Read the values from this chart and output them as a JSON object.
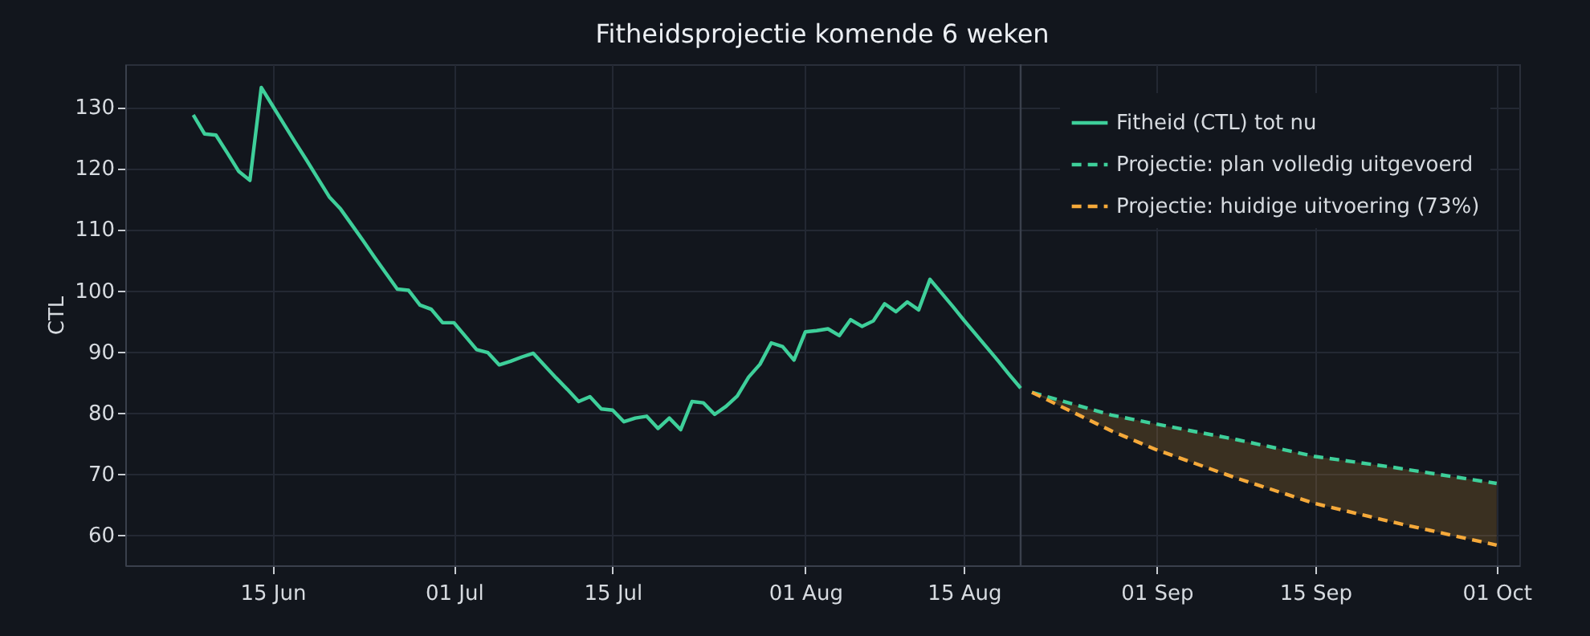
{
  "chart_data": {
    "type": "line",
    "title": "Fitheidsprojectie komende 6 weken",
    "ylabel": "CTL",
    "xlim": [
      "--06-02",
      "--10-03"
    ],
    "ylim": [
      55,
      137
    ],
    "xticks": [
      {
        "value": "--06-15",
        "label": "15 Jun"
      },
      {
        "value": "--07-01",
        "label": "01 Jul"
      },
      {
        "value": "--07-15",
        "label": "15 Jul"
      },
      {
        "value": "--08-01",
        "label": "01 Aug"
      },
      {
        "value": "--08-15",
        "label": "15 Aug"
      },
      {
        "value": "--09-01",
        "label": "01 Sep"
      },
      {
        "value": "--09-15",
        "label": "15 Sep"
      },
      {
        "value": "--10-01",
        "label": "01 Oct"
      }
    ],
    "yticks": [
      60,
      70,
      80,
      90,
      100,
      110,
      120,
      130
    ],
    "grid": true,
    "legend": "top right",
    "marker": "none",
    "ref_lines": [
      {
        "axis": "x",
        "value": "--08-20",
        "label": null,
        "color": "#3a404c"
      }
    ],
    "series": [
      {
        "name": "Fitheid (CTL) tot nu",
        "color": "#3ecf9a",
        "line_style": "solid",
        "x": [
          "--06-08",
          "--06-09",
          "--06-10",
          "--06-11",
          "--06-12",
          "--06-13",
          "--06-14",
          "--06-15",
          "--06-16",
          "--06-17",
          "--06-18",
          "--06-19",
          "--06-20",
          "--06-21",
          "--06-22",
          "--06-23",
          "--06-24",
          "--06-25",
          "--06-26",
          "--06-27",
          "--06-28",
          "--06-29",
          "--06-30",
          "--07-01",
          "--07-02",
          "--07-03",
          "--07-04",
          "--07-05",
          "--07-06",
          "--07-07",
          "--07-08",
          "--07-09",
          "--07-10",
          "--07-11",
          "--07-12",
          "--07-13",
          "--07-14",
          "--07-15",
          "--07-16",
          "--07-17",
          "--07-18",
          "--07-19",
          "--07-20",
          "--07-21",
          "--07-22",
          "--07-23",
          "--07-24",
          "--07-25",
          "--07-26",
          "--07-27",
          "--07-28",
          "--07-29",
          "--07-30",
          "--07-31",
          "--08-01",
          "--08-02",
          "--08-03",
          "--08-04",
          "--08-05",
          "--08-06",
          "--08-07",
          "--08-08",
          "--08-09",
          "--08-10",
          "--08-11",
          "--08-12",
          "--08-13",
          "--08-14",
          "--08-15",
          "--08-16",
          "--08-17",
          "--08-18",
          "--08-19",
          "--08-20"
        ],
        "values": [
          128.7,
          125.6,
          125.4,
          122.5,
          119.5,
          118,
          133.2,
          130.2,
          127.2,
          124.2,
          121.3,
          118.3,
          115.3,
          113.3,
          110.7,
          108.1,
          105.4,
          102.8,
          100.2,
          100,
          97.6,
          96.9,
          94.7,
          94.7,
          92.5,
          90.3,
          89.8,
          87.8,
          88.4,
          89.1,
          89.7,
          87.7,
          85.7,
          83.8,
          81.8,
          82.6,
          80.6,
          80.4,
          78.5,
          79.1,
          79.4,
          77.4,
          79.1,
          77.2,
          81.8,
          81.6,
          79.7,
          81,
          82.7,
          85.8,
          87.9,
          91.4,
          90.8,
          88.6,
          93.2,
          93.4,
          93.7,
          92.6,
          95.2,
          94.1,
          95,
          97.8,
          96.5,
          98.1,
          96.8,
          101.8,
          99.6,
          97.4,
          95.1,
          92.9,
          90.7,
          88.5,
          86.2,
          84
        ]
      },
      {
        "name": "Projectie: plan volledig uitgevoerd",
        "color": "#3ecf9a",
        "line_style": "dashed",
        "x": [
          "--08-21",
          "--08-28",
          "--09-01",
          "--09-08",
          "--09-15",
          "--09-22",
          "--10-01"
        ],
        "values": [
          83.3,
          79.6,
          78.1,
          75.6,
          72.8,
          71.0,
          68.4
        ],
        "lower": [
          83.3,
          77.0,
          73.9,
          69.3,
          65.1,
          62.0,
          58.3
        ],
        "upper": [
          83.3,
          79.6,
          78.1,
          75.6,
          72.8,
          71.0,
          68.4
        ]
      },
      {
        "name": "Projectie: huidige uitvoering (73%)",
        "color": "#f5a93a",
        "line_style": "dashed",
        "x": [
          "--08-21",
          "--08-28",
          "--09-01",
          "--09-08",
          "--09-15",
          "--09-22",
          "--10-01"
        ],
        "values": [
          83.3,
          77.0,
          73.9,
          69.3,
          65.1,
          62.0,
          58.3
        ]
      }
    ]
  }
}
